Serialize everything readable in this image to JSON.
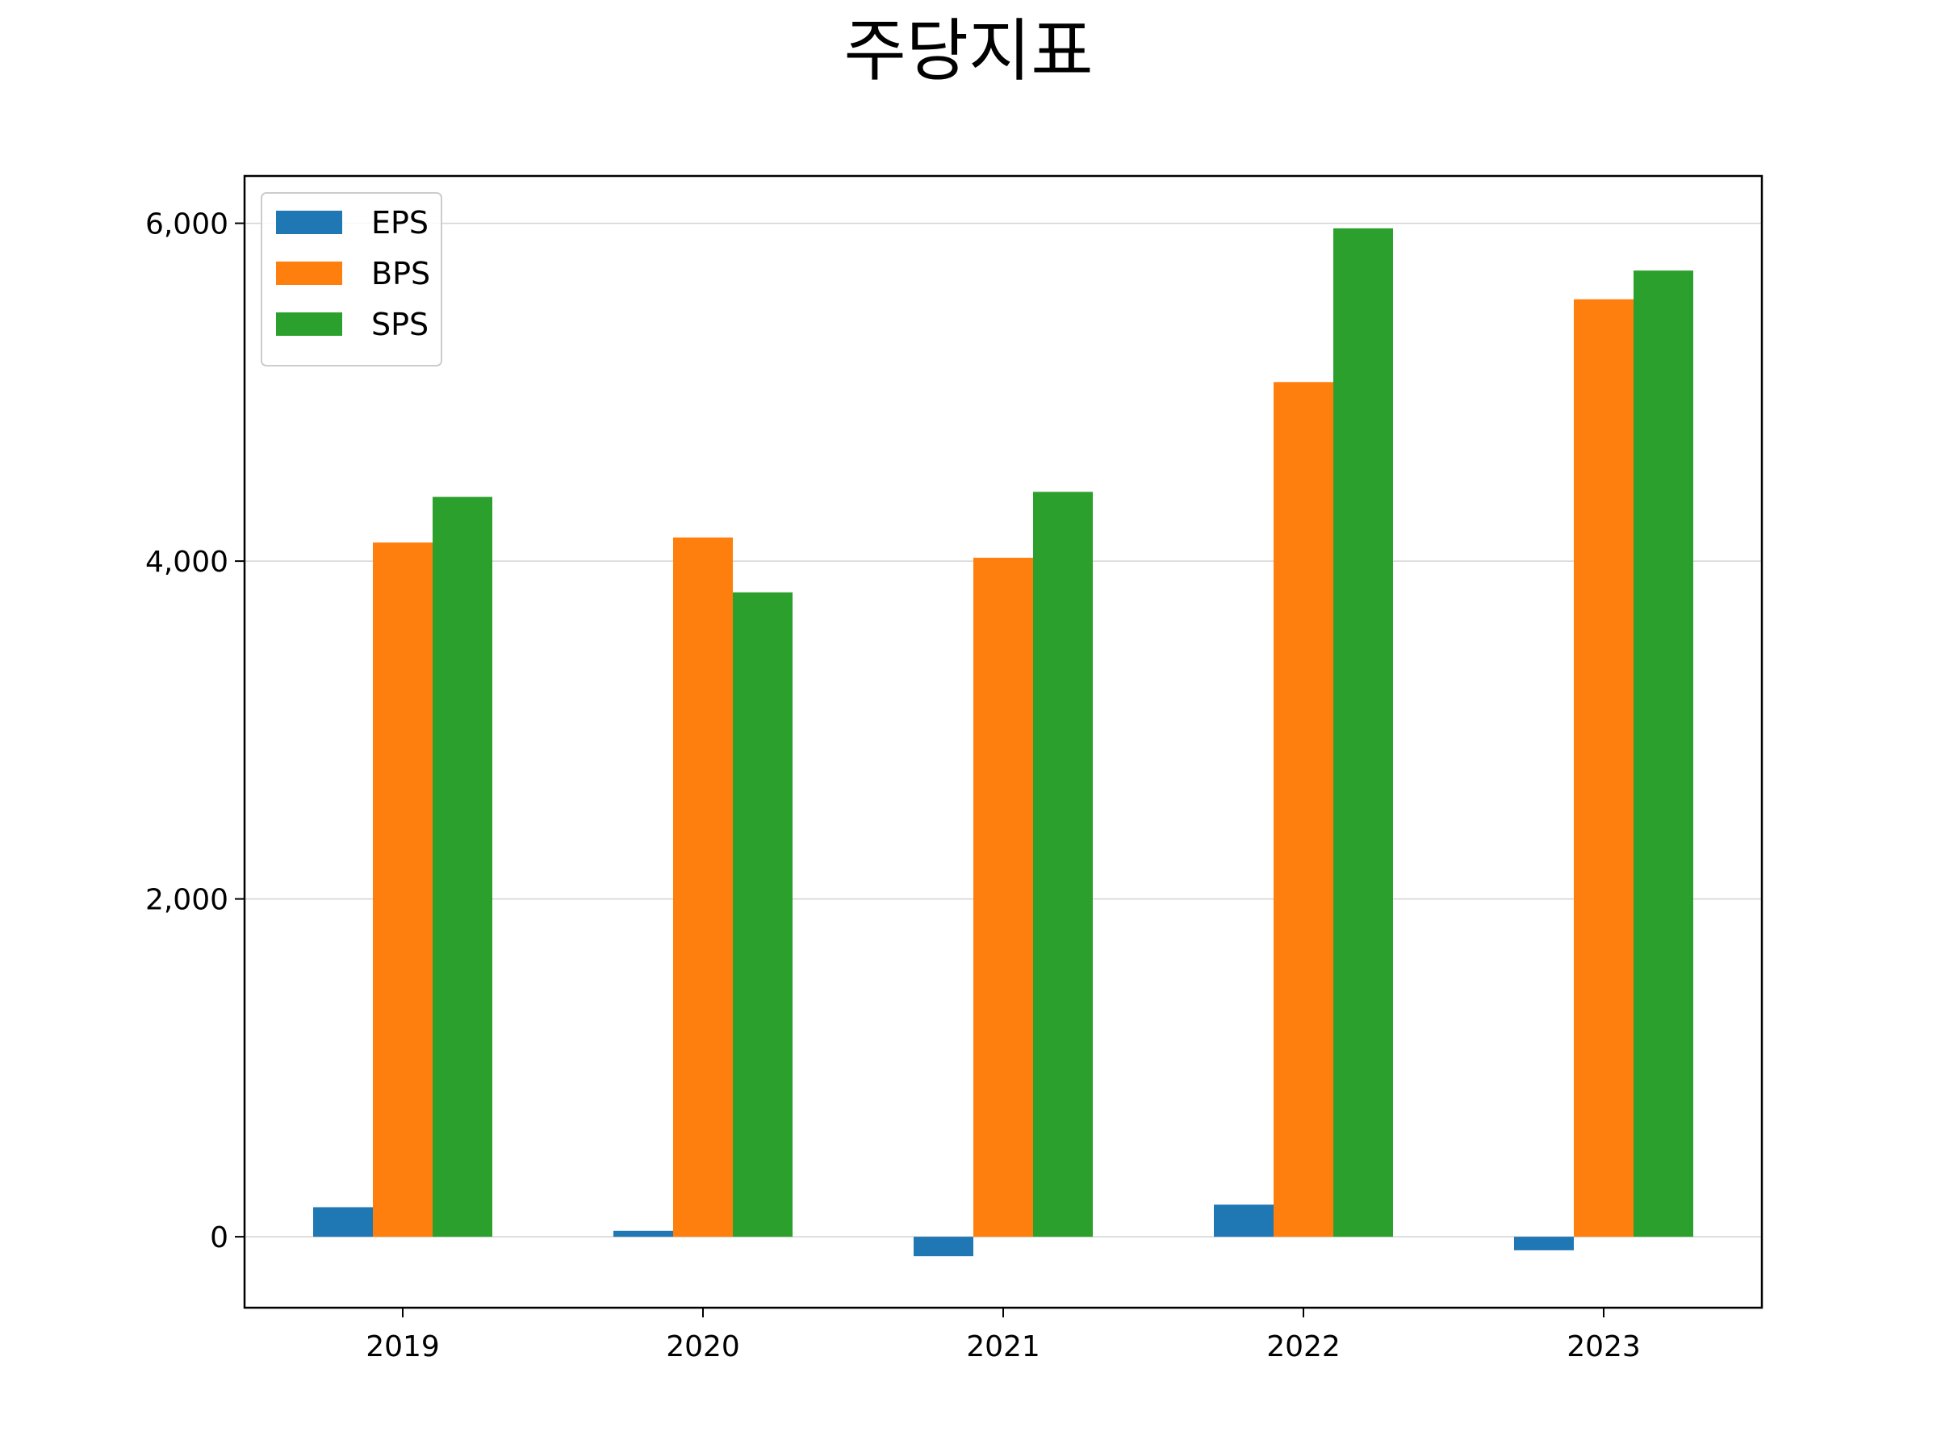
{
  "chart_data": {
    "type": "bar",
    "title": "주당지표",
    "xlabel": "",
    "ylabel": "",
    "categories": [
      "2019",
      "2020",
      "2021",
      "2022",
      "2023"
    ],
    "series": [
      {
        "name": "EPS",
        "color": "#1f77b4",
        "values": [
          175,
          35,
          -115,
          190,
          -80
        ]
      },
      {
        "name": "BPS",
        "color": "#ff7f0e",
        "values": [
          4110,
          4140,
          4020,
          5060,
          5550
        ]
      },
      {
        "name": "SPS",
        "color": "#2ca02c",
        "values": [
          4380,
          3815,
          4410,
          5970,
          5720
        ]
      }
    ],
    "ylim": [
      -420,
      6280
    ],
    "yticks": [
      0,
      2000,
      4000,
      6000
    ],
    "ytick_labels": [
      "0",
      "2,000",
      "4,000",
      "6,000"
    ],
    "grid": "y",
    "legend_position": "top-left"
  }
}
